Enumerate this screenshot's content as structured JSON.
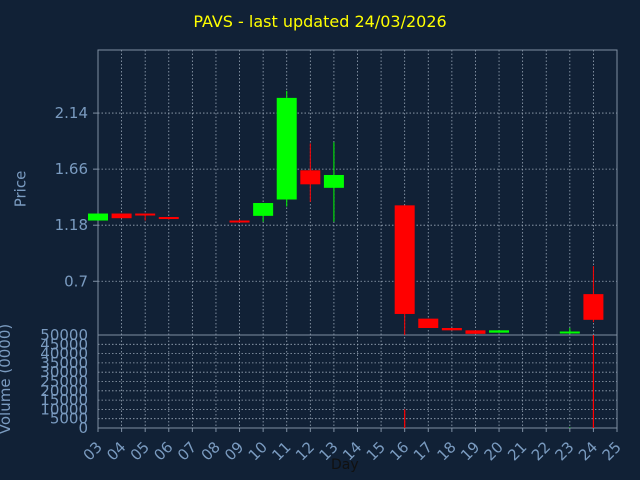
{
  "chart_data": [
    {
      "type": "candlestick",
      "title": "PAVS - last updated 24/03/2026",
      "ylabel": "Price",
      "yticks": [
        "2.14",
        "1.66",
        "1.18",
        "0.7"
      ],
      "ytick_values": [
        2.14,
        1.66,
        1.18,
        0.7
      ],
      "ylim": [
        0.24,
        2.68
      ],
      "xlim": [
        3,
        25
      ],
      "grid": true,
      "candles": [
        {
          "day": 3,
          "open": 1.22,
          "close": 1.28,
          "high": 1.28,
          "low": 1.22
        },
        {
          "day": 4,
          "open": 1.28,
          "close": 1.24,
          "high": 1.28,
          "low": 1.24
        },
        {
          "day": 5,
          "open": 1.28,
          "close": 1.27,
          "high": 1.28,
          "low": 1.22
        },
        {
          "day": 6,
          "open": 1.25,
          "close": 1.24,
          "high": 1.25,
          "low": 1.23
        },
        {
          "day": 9,
          "open": 1.22,
          "close": 1.21,
          "high": 1.23,
          "low": 1.21
        },
        {
          "day": 10,
          "open": 1.26,
          "close": 1.37,
          "high": 1.37,
          "low": 1.21
        },
        {
          "day": 11,
          "open": 1.4,
          "close": 2.27,
          "high": 2.33,
          "low": 1.34
        },
        {
          "day": 12,
          "open": 1.65,
          "close": 1.53,
          "high": 1.88,
          "low": 1.38
        },
        {
          "day": 13,
          "open": 1.5,
          "close": 1.61,
          "high": 1.89,
          "low": 1.21
        },
        {
          "day": 16,
          "open": 1.35,
          "close": 0.42,
          "high": 1.35,
          "low": 0.24
        },
        {
          "day": 17,
          "open": 0.38,
          "close": 0.3,
          "high": 0.38,
          "low": 0.3
        },
        {
          "day": 18,
          "open": 0.3,
          "close": 0.28,
          "high": 0.3,
          "low": 0.28
        },
        {
          "day": 19,
          "open": 0.28,
          "close": 0.25,
          "high": 0.28,
          "low": 0.25
        },
        {
          "day": 20,
          "open": 0.26,
          "close": 0.28,
          "high": 0.28,
          "low": 0.26
        },
        {
          "day": 23,
          "open": 0.26,
          "close": 0.27,
          "high": 0.3,
          "low": 0.25
        },
        {
          "day": 24,
          "open": 0.59,
          "close": 0.37,
          "high": 0.83,
          "low": 0.35
        }
      ],
      "up_color": "#00ff00",
      "down_color": "#ff0000"
    },
    {
      "type": "bar",
      "ylabel": "Volume (0000)",
      "xlabel": "Day",
      "yticks": [
        "50000",
        "45000",
        "40000",
        "35000",
        "30000",
        "25000",
        "20000",
        "15000",
        "10000",
        "5000",
        "0"
      ],
      "ytick_values": [
        50000,
        45000,
        40000,
        35000,
        30000,
        25000,
        20000,
        15000,
        10000,
        5000,
        0
      ],
      "ylim": [
        0,
        50000
      ],
      "xticks": [
        "03",
        "04",
        "05",
        "06",
        "07",
        "08",
        "09",
        "10",
        "11",
        "12",
        "13",
        "14",
        "15",
        "16",
        "17",
        "18",
        "19",
        "20",
        "21",
        "22",
        "23",
        "24",
        "25"
      ],
      "bars": [
        {
          "day": 16,
          "value": 10000,
          "color": "#ff0000"
        },
        {
          "day": 23,
          "value": 300,
          "color": "#00ff00"
        },
        {
          "day": 24,
          "value": 50000,
          "color": "#ff0000"
        }
      ]
    }
  ]
}
